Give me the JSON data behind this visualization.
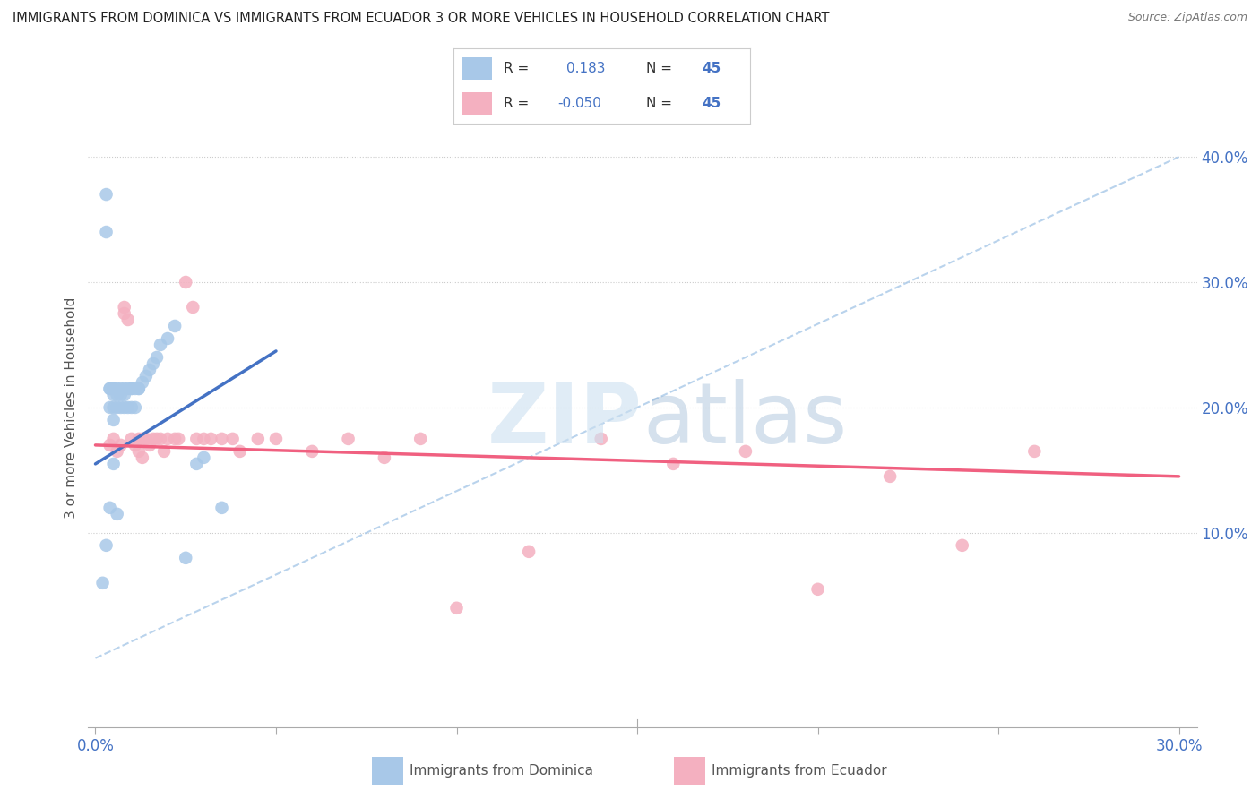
{
  "title": "IMMIGRANTS FROM DOMINICA VS IMMIGRANTS FROM ECUADOR 3 OR MORE VEHICLES IN HOUSEHOLD CORRELATION CHART",
  "source": "Source: ZipAtlas.com",
  "ylabel": "3 or more Vehicles in Household",
  "xlim": [
    -0.002,
    0.305
  ],
  "ylim": [
    -0.055,
    0.455
  ],
  "xticks": [
    0.0,
    0.05,
    0.1,
    0.15,
    0.2,
    0.25,
    0.3
  ],
  "xtick_labels": [
    "0.0%",
    "",
    "",
    "",
    "",
    "",
    "30.0%"
  ],
  "yticks_right": [
    0.1,
    0.2,
    0.3,
    0.4
  ],
  "ytick_labels_right": [
    "10.0%",
    "20.0%",
    "30.0%",
    "40.0%"
  ],
  "r_dominica": 0.183,
  "r_ecuador": -0.05,
  "n_dominica": 45,
  "n_ecuador": 45,
  "color_dominica": "#a8c8e8",
  "color_ecuador": "#f4b0c0",
  "color_dominica_line": "#4472c4",
  "color_ecuador_line": "#f06080",
  "color_dashed": "#a8c8e8",
  "color_text_blue": "#4472c4",
  "background_color": "#ffffff",
  "legend_label_dominica": "Immigrants from Dominica",
  "legend_label_ecuador": "Immigrants from Ecuador",
  "dom_x": [
    0.003,
    0.003,
    0.004,
    0.004,
    0.004,
    0.005,
    0.005,
    0.005,
    0.005,
    0.005,
    0.006,
    0.006,
    0.006,
    0.007,
    0.007,
    0.007,
    0.008,
    0.008,
    0.008,
    0.009,
    0.009,
    0.01,
    0.01,
    0.01,
    0.011,
    0.011,
    0.012,
    0.012,
    0.013,
    0.014,
    0.015,
    0.016,
    0.017,
    0.018,
    0.02,
    0.022,
    0.025,
    0.028,
    0.03,
    0.035,
    0.002,
    0.003,
    0.004,
    0.005,
    0.006
  ],
  "dom_y": [
    0.37,
    0.34,
    0.215,
    0.2,
    0.215,
    0.215,
    0.2,
    0.19,
    0.215,
    0.21,
    0.215,
    0.2,
    0.21,
    0.215,
    0.21,
    0.2,
    0.215,
    0.2,
    0.21,
    0.215,
    0.2,
    0.215,
    0.2,
    0.215,
    0.215,
    0.2,
    0.215,
    0.215,
    0.22,
    0.225,
    0.23,
    0.235,
    0.24,
    0.25,
    0.255,
    0.265,
    0.08,
    0.155,
    0.16,
    0.12,
    0.06,
    0.09,
    0.12,
    0.155,
    0.115
  ],
  "ecu_x": [
    0.004,
    0.005,
    0.006,
    0.007,
    0.008,
    0.008,
    0.009,
    0.01,
    0.011,
    0.012,
    0.012,
    0.013,
    0.013,
    0.014,
    0.015,
    0.016,
    0.017,
    0.018,
    0.019,
    0.02,
    0.022,
    0.023,
    0.025,
    0.027,
    0.028,
    0.03,
    0.032,
    0.035,
    0.038,
    0.04,
    0.045,
    0.05,
    0.06,
    0.07,
    0.08,
    0.09,
    0.1,
    0.12,
    0.14,
    0.16,
    0.18,
    0.2,
    0.22,
    0.24,
    0.26
  ],
  "ecu_y": [
    0.17,
    0.175,
    0.165,
    0.17,
    0.28,
    0.275,
    0.27,
    0.175,
    0.17,
    0.175,
    0.165,
    0.175,
    0.16,
    0.175,
    0.17,
    0.175,
    0.175,
    0.175,
    0.165,
    0.175,
    0.175,
    0.175,
    0.3,
    0.28,
    0.175,
    0.175,
    0.175,
    0.175,
    0.175,
    0.165,
    0.175,
    0.175,
    0.165,
    0.175,
    0.16,
    0.175,
    0.04,
    0.085,
    0.175,
    0.155,
    0.165,
    0.055,
    0.145,
    0.09,
    0.165
  ],
  "dom_line_x": [
    0.0,
    0.05
  ],
  "dom_line_y": [
    0.155,
    0.245
  ],
  "ecu_line_x": [
    0.0,
    0.3
  ],
  "ecu_line_y": [
    0.17,
    0.145
  ],
  "dash_line_x": [
    0.0,
    0.3
  ],
  "dash_line_y": [
    0.0,
    0.4
  ]
}
